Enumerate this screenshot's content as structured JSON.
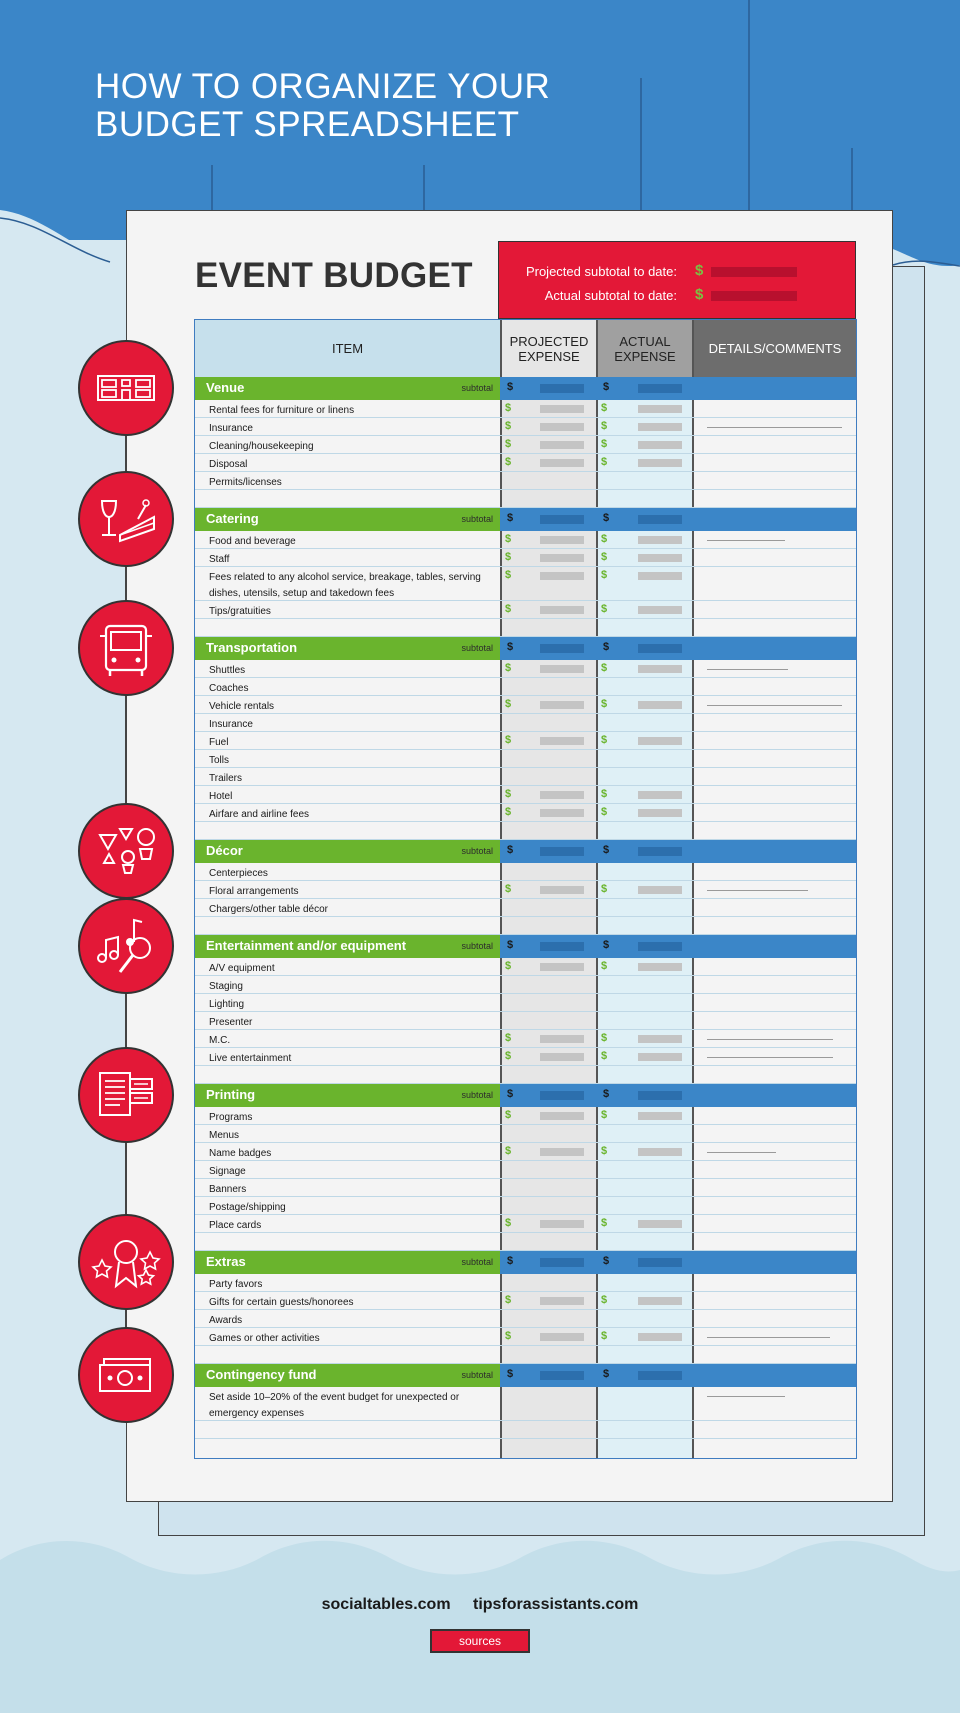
{
  "headline": "HOW TO ORGANIZE YOUR\nBUDGET SPREADSHEET",
  "title": "EVENT BUDGET",
  "summary": {
    "projected_label": "Projected subtotal to date:",
    "actual_label": "Actual subtotal to date:",
    "currency": "$"
  },
  "columns": {
    "item": "ITEM",
    "projected": "PROJECTED EXPENSE",
    "actual": "ACTUAL EXPENSE",
    "details": "DETAILS/COMMENTS"
  },
  "subtotal_label": "subtotal",
  "currency": "$",
  "sections": [
    {
      "name": "Venue",
      "icon": "venue-icon",
      "items": [
        {
          "label": "Rental fees for furniture or linens",
          "dollar": true,
          "comment": 0
        },
        {
          "label": "Insurance",
          "dollar": true,
          "comment": 0.9
        },
        {
          "label": "Cleaning/housekeeping",
          "dollar": true,
          "comment": 0
        },
        {
          "label": "Disposal",
          "dollar": true,
          "comment": 0
        },
        {
          "label": "Permits/licenses",
          "dollar": false,
          "comment": 0
        },
        {
          "label": "",
          "dollar": false,
          "comment": 0
        }
      ]
    },
    {
      "name": "Catering",
      "icon": "catering-icon",
      "items": [
        {
          "label": "Food and beverage",
          "dollar": true,
          "comment": 0.52
        },
        {
          "label": "Staff",
          "dollar": true,
          "comment": 0
        },
        {
          "label": "Fees related to any alcohol service, breakage, tables, serving dishes, utensils, setup and takedown fees",
          "dollar": true,
          "comment": 0,
          "tall": true
        },
        {
          "label": "Tips/gratuities",
          "dollar": true,
          "comment": 0
        },
        {
          "label": "",
          "dollar": false,
          "comment": 0
        }
      ]
    },
    {
      "name": "Transportation",
      "icon": "bus-icon",
      "items": [
        {
          "label": "Shuttles",
          "dollar": true,
          "comment": 0.54
        },
        {
          "label": "Coaches",
          "dollar": false,
          "comment": 0
        },
        {
          "label": "Vehicle rentals",
          "dollar": true,
          "comment": 0.9
        },
        {
          "label": "Insurance",
          "dollar": false,
          "comment": 0
        },
        {
          "label": "Fuel",
          "dollar": true,
          "comment": 0
        },
        {
          "label": "Tolls",
          "dollar": false,
          "comment": 0
        },
        {
          "label": "Trailers",
          "dollar": false,
          "comment": 0
        },
        {
          "label": "Hotel",
          "dollar": true,
          "comment": 0
        },
        {
          "label": "Airfare and airline fees",
          "dollar": true,
          "comment": 0
        },
        {
          "label": "",
          "dollar": false,
          "comment": 0
        }
      ]
    },
    {
      "name": "Décor",
      "icon": "decor-icon",
      "items": [
        {
          "label": "Centerpieces",
          "dollar": false,
          "comment": 0
        },
        {
          "label": "Floral arrangements",
          "dollar": true,
          "comment": 0.67
        },
        {
          "label": "Chargers/other table décor",
          "dollar": false,
          "comment": 0
        },
        {
          "label": "",
          "dollar": false,
          "comment": 0
        }
      ]
    },
    {
      "name": "Entertainment and/or equipment",
      "icon": "music-icon",
      "items": [
        {
          "label": "A/V equipment",
          "dollar": true,
          "comment": 0
        },
        {
          "label": "Staging",
          "dollar": false,
          "comment": 0
        },
        {
          "label": "Lighting",
          "dollar": false,
          "comment": 0
        },
        {
          "label": "Presenter",
          "dollar": false,
          "comment": 0
        },
        {
          "label": "M.C.",
          "dollar": true,
          "comment": 0.84
        },
        {
          "label": "Live entertainment",
          "dollar": true,
          "comment": 0.84
        },
        {
          "label": "",
          "dollar": false,
          "comment": 0
        }
      ]
    },
    {
      "name": "Printing",
      "icon": "printing-icon",
      "items": [
        {
          "label": "Programs",
          "dollar": true,
          "comment": 0
        },
        {
          "label": "Menus",
          "dollar": false,
          "comment": 0
        },
        {
          "label": "Name badges",
          "dollar": true,
          "comment": 0.46
        },
        {
          "label": "Signage",
          "dollar": false,
          "comment": 0
        },
        {
          "label": "Banners",
          "dollar": false,
          "comment": 0
        },
        {
          "label": "Postage/shipping",
          "dollar": false,
          "comment": 0
        },
        {
          "label": "Place cards",
          "dollar": true,
          "comment": 0
        },
        {
          "label": "",
          "dollar": false,
          "comment": 0
        }
      ]
    },
    {
      "name": "Extras",
      "icon": "award-icon",
      "items": [
        {
          "label": "Party favors",
          "dollar": false,
          "comment": 0
        },
        {
          "label": "Gifts for certain guests/honorees",
          "dollar": true,
          "comment": 0
        },
        {
          "label": "Awards",
          "dollar": false,
          "comment": 0
        },
        {
          "label": "Games or other activities",
          "dollar": true,
          "comment": 0.82
        },
        {
          "label": "",
          "dollar": false,
          "comment": 0
        }
      ]
    },
    {
      "name": "Contingency fund",
      "icon": "money-icon",
      "items": [
        {
          "label": "Set aside 10–20% of the event budget for unexpected or emergency expenses",
          "dollar": false,
          "comment": 0.52,
          "tall": true
        },
        {
          "label": "",
          "dollar": false,
          "comment": 0
        }
      ]
    }
  ],
  "footer": {
    "site1": "socialtables.com",
    "site2": "tipsforassistants.com",
    "sources": "sources"
  },
  "colors": {
    "blue": "#3b86c8",
    "green": "#6ab42d",
    "red": "#e31837"
  }
}
